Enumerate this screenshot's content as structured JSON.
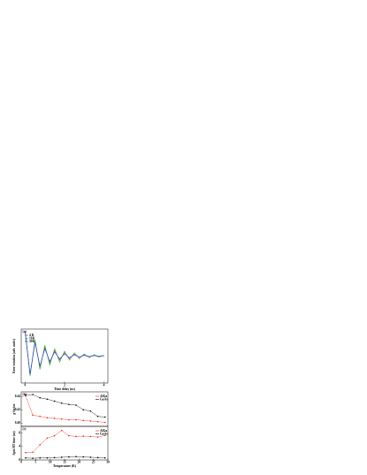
{
  "chart_data": [
    {
      "type": "line",
      "label": "(a)",
      "xlabel": "Time delay (ns)",
      "ylabel": "Kerr rotation (arb. units)",
      "x": [
        0,
        0.25,
        0.5,
        0.75,
        1,
        1.25,
        1.5,
        1.75,
        2,
        2.25,
        2.5,
        2.75,
        3,
        3.25,
        3.5,
        3.75,
        4
      ],
      "xlim": [
        -0.2,
        4.2
      ],
      "xticks": [
        0,
        2,
        4
      ],
      "ylim": [
        -1.1,
        1.1
      ],
      "legend": "upper left",
      "markers": false,
      "series": [
        {
          "name": "4 K",
          "color": "#e8231f",
          "values": [
            1.0,
            -0.78,
            0.61,
            -0.47,
            0.37,
            -0.29,
            0.22,
            -0.17,
            0.14,
            -0.11,
            0.08,
            -0.06,
            0.05,
            -0.04,
            0.03,
            -0.02,
            0.02
          ]
        },
        {
          "name": "16K",
          "color": "#1fbf3a",
          "values": [
            1.0,
            -0.82,
            0.67,
            -0.55,
            0.45,
            -0.37,
            0.3,
            -0.25,
            0.2,
            -0.17,
            0.14,
            -0.11,
            0.09,
            -0.07,
            0.06,
            -0.05,
            0.04
          ]
        },
        {
          "name": "30K",
          "color": "#2430d8",
          "values": [
            1.0,
            -0.74,
            0.55,
            -0.41,
            0.3,
            -0.22,
            0.17,
            -0.12,
            0.09,
            -0.07,
            0.05,
            -0.04,
            0.03,
            -0.02,
            0.02,
            -0.01,
            0.01
          ]
        }
      ]
    },
    {
      "type": "line",
      "label": "(b)",
      "ylabel": "g-factor",
      "x": [
        1.5,
        4,
        6.5,
        9,
        11.5,
        14,
        16.5,
        19,
        21.5,
        24,
        26.5,
        29
      ],
      "xlim": [
        0,
        30
      ],
      "ylim": [
        0.395,
        0.447
      ],
      "yticks": [
        {
          "value": 0.4,
          "label": "0.40"
        },
        {
          "value": 0.42,
          "label": "0.42"
        },
        {
          "value": 0.44,
          "label": "0.44"
        }
      ],
      "legend": "upper right",
      "markers": true,
      "series": [
        {
          "name": "AlGa",
          "color": "#e8231f",
          "values": [
            0.441,
            0.412,
            0.41,
            0.408,
            0.407,
            0.406,
            0.405,
            0.405,
            0.404,
            0.403,
            0.402,
            0.401
          ]
        },
        {
          "name": "GaAs",
          "color": "#000000",
          "values": [
            0.442,
            0.443,
            0.438,
            0.436,
            0.433,
            0.43,
            0.428,
            0.427,
            0.42,
            0.418,
            0.41,
            0.409
          ]
        }
      ]
    },
    {
      "type": "line",
      "label": "(c)",
      "xlabel": "Temperature (K)",
      "ylabel": "Spin RT time (ns)",
      "x": [
        1.5,
        4,
        6.5,
        9,
        11.5,
        14,
        16.5,
        19,
        21.5,
        24,
        26.5,
        29
      ],
      "xlim": [
        0,
        30
      ],
      "xticks": [
        0,
        5,
        10,
        15,
        20,
        25,
        30
      ],
      "ylim": [
        0,
        10
      ],
      "yticks": [
        0,
        4,
        8
      ],
      "legend": "upper right",
      "markers": true,
      "series": [
        {
          "name": "AlGa",
          "color": "#e8231f",
          "values": [
            2.2,
            2.3,
            4.5,
            6.5,
            7.2,
            8.8,
            7.2,
            7.0,
            7.1,
            7.0,
            6.8,
            7.3
          ]
        },
        {
          "name": "GaAs",
          "color": "#000000",
          "values": [
            0.6,
            0.5,
            0.6,
            0.6,
            0.7,
            0.8,
            0.9,
            1.0,
            0.9,
            0.8,
            0.7,
            0.6
          ]
        }
      ]
    }
  ]
}
